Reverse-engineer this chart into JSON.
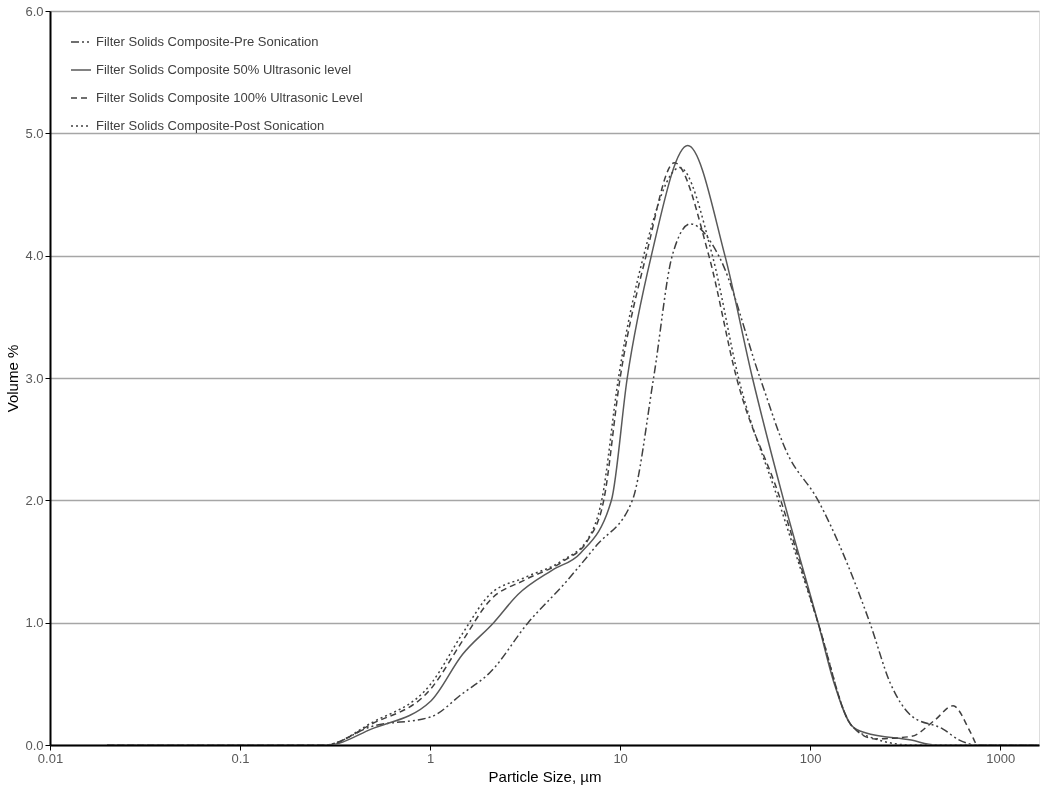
{
  "chart_data": {
    "type": "line",
    "xlabel": "Particle Size, µm",
    "ylabel": "Volume %",
    "log": "x",
    "grid": "y",
    "legend": "top left",
    "marker": "none",
    "xlim": [
      0.01,
      1600
    ],
    "xticks": [
      0.01,
      0.1,
      1,
      10,
      100,
      1000
    ],
    "ylim": [
      0,
      6
    ],
    "yticks": [
      {
        "value": 0,
        "label": "0.0"
      },
      {
        "value": 1,
        "label": "1.0"
      },
      {
        "value": 2,
        "label": "2.0"
      },
      {
        "value": 3,
        "label": "3.0"
      },
      {
        "value": 4,
        "label": "4.0"
      },
      {
        "value": 5,
        "label": "5.0"
      },
      {
        "value": 6,
        "label": "6.0"
      }
    ],
    "series": [
      {
        "name": "Filter Solids Composite-Pre Sonication",
        "color": "#404040",
        "line_style": "dashdot",
        "x": [
          0.02,
          0.28,
          0.49,
          1.01,
          1.48,
          2.06,
          3.28,
          5.1,
          7.5,
          11.6,
          15,
          18.8,
          23.4,
          33,
          54.5,
          75,
          110,
          206,
          265,
          340,
          500,
          610,
          760,
          1600
        ],
        "values": [
          0,
          0,
          0.15,
          0.23,
          0.42,
          0.59,
          1.0,
          1.32,
          1.63,
          2.0,
          3.0,
          4.0,
          4.26,
          4.0,
          3.0,
          2.4,
          2.0,
          1.0,
          0.5,
          0.24,
          0.13,
          0.04,
          0,
          0
        ]
      },
      {
        "name": "Filter Solids Composite 50% Ultrasonic level",
        "color": "#595959",
        "line_style": "solid",
        "x": [
          0.02,
          0.29,
          0.49,
          1.01,
          1.48,
          2.16,
          2.9,
          4.4,
          6.2,
          9.0,
          10.9,
          14.6,
          22.7,
          35.6,
          49.7,
          72.6,
          110,
          134,
          165,
          195,
          340,
          455,
          1600
        ],
        "values": [
          0,
          0,
          0.13,
          0.36,
          0.74,
          1.0,
          1.23,
          1.43,
          1.57,
          2.0,
          3.0,
          4.0,
          4.9,
          4.0,
          3.0,
          2.0,
          1.0,
          0.5,
          0.16,
          0.1,
          0.04,
          0,
          0
        ]
      },
      {
        "name": "Filter Solids Composite 100% Ultrasonic Level",
        "color": "#404040",
        "line_style": "dashed",
        "x": [
          0.02,
          0.28,
          0.49,
          1.01,
          1.48,
          2.06,
          3.16,
          4.99,
          6.8,
          8.2,
          10,
          13.7,
          19.3,
          29.3,
          41,
          70,
          110,
          165,
          220,
          340,
          450,
          565,
          700,
          760,
          1600
        ],
        "values": [
          0,
          0,
          0.17,
          0.46,
          0.85,
          1.18,
          1.35,
          1.5,
          1.68,
          2.0,
          3.0,
          4.0,
          4.76,
          4.0,
          3.0,
          2.0,
          1.0,
          0.16,
          0.05,
          0.07,
          0.2,
          0.32,
          0.1,
          0,
          0
        ]
      },
      {
        "name": "Filter Solids Composite-Post Sonication",
        "color": "#404040",
        "line_style": "dotted",
        "x": [
          0.02,
          0.28,
          0.49,
          1.01,
          1.48,
          2.06,
          3.16,
          4.99,
          6.8,
          8.0,
          9.8,
          13.3,
          20.6,
          30.6,
          42,
          68,
          110,
          165,
          220,
          340,
          1600
        ],
        "values": [
          0,
          0,
          0.18,
          0.5,
          0.91,
          1.23,
          1.37,
          1.51,
          1.69,
          2.0,
          3.0,
          4.0,
          4.72,
          4.0,
          3.0,
          2.0,
          1.0,
          0.16,
          0.05,
          0,
          0
        ]
      }
    ]
  }
}
